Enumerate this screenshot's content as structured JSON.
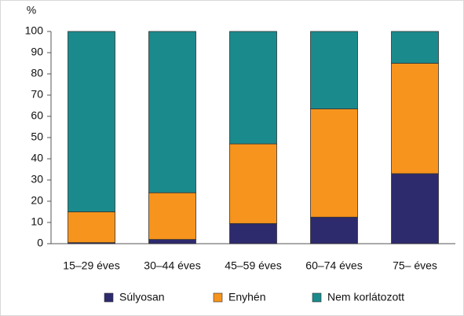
{
  "chart_data": {
    "type": "stacked_bar",
    "y_label": "%",
    "categories": [
      "15–29 éves",
      "30–44 éves",
      "45–59 éves",
      "60–74 éves",
      "75– éves"
    ],
    "series": [
      {
        "name": "Súlyosan",
        "color": "#2e2a6e",
        "values": [
          0.5,
          2,
          9.5,
          12.5,
          33
        ]
      },
      {
        "name": "Enyhén",
        "color": "#f7941d",
        "values": [
          14.5,
          22,
          37.5,
          51,
          52
        ]
      },
      {
        "name": "Nem korlátozott",
        "color": "#1b8a8c",
        "values": [
          85,
          76,
          53,
          36.5,
          15
        ]
      }
    ],
    "ylim": [
      0,
      100
    ],
    "yticks": [
      0,
      10,
      20,
      30,
      40,
      50,
      60,
      70,
      80,
      90,
      100
    ],
    "legend": "bottom"
  }
}
